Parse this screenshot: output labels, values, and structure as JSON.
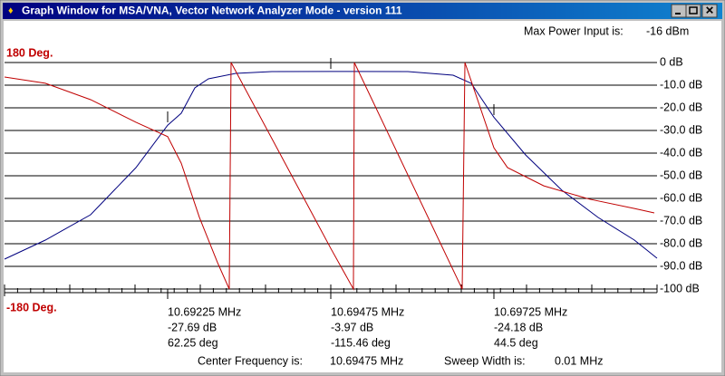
{
  "window": {
    "title": "Graph Window for MSA/VNA, Vector Network Analyzer Mode - version 111"
  },
  "header": {
    "max_power_label": "Max Power Input is:",
    "max_power_value": "-16 dBm"
  },
  "chart_data": {
    "type": "line",
    "xlim": [
      10.68975,
      10.69975
    ],
    "ylim": [
      -100,
      0
    ],
    "yticks": [
      {
        "value": 0,
        "label": "0 dB"
      },
      {
        "value": -10,
        "label": "-10.0 dB"
      },
      {
        "value": -20,
        "label": "-20.0 dB"
      },
      {
        "value": -30,
        "label": "-30.0 dB"
      },
      {
        "value": -40,
        "label": "-40.0 dB"
      },
      {
        "value": -50,
        "label": "-50.0 dB"
      },
      {
        "value": -60,
        "label": "-60.0 dB"
      },
      {
        "value": -70,
        "label": "-70.0 dB"
      },
      {
        "value": -80,
        "label": "-80.0 dB"
      },
      {
        "value": -90,
        "label": "-90.0 dB"
      },
      {
        "value": -100,
        "label": "-100 dB"
      }
    ],
    "y2lim": [
      -180,
      180
    ],
    "y2ticks": [
      {
        "value": 180,
        "label": "180 Deg."
      },
      {
        "value": -180,
        "label": "-180 Deg."
      }
    ],
    "grid": true,
    "series": [
      {
        "color": "#00007f",
        "x": [
          10.68975,
          10.690375,
          10.691069,
          10.691764,
          10.69225,
          10.692458,
          10.692667,
          10.692875,
          10.693292,
          10.693847,
          10.69475,
          10.695931,
          10.696625,
          10.696903,
          10.69725,
          10.697736,
          10.698292,
          10.698847,
          10.699403,
          10.69975
        ],
        "values": [
          -86.8,
          -78.4,
          -67.2,
          -46.4,
          -27.69,
          -22.4,
          -11.2,
          -7.2,
          -4.8,
          -4,
          -3.97,
          -4,
          -5.6,
          -9.2,
          -24.18,
          -40.8,
          -56.4,
          -68.4,
          -78.4,
          -86.4
        ]
      },
      {
        "color": "#c00000",
        "axis": "y2",
        "x": [
          10.68975,
          10.690375,
          10.691069,
          10.691764,
          10.69225,
          10.692458,
          10.692736,
          10.693014,
          10.693194,
          10.693222,
          10.69475,
          10.695097,
          10.695111,
          10.696764,
          10.696806,
          10.69725,
          10.697458,
          10.698014,
          10.698708,
          10.699403,
          10.699708
        ],
        "values": [
          157,
          147,
          121,
          85,
          62.25,
          20,
          -66,
          -138,
          -180,
          180,
          -115.46,
          -180,
          180,
          -180,
          180,
          44.5,
          13,
          -16,
          -37,
          -52,
          -59
        ]
      }
    ]
  },
  "markers": [
    {
      "frequency": "10.69225 MHz",
      "magnitude": "-27.69 dB",
      "phase": "62.25 deg"
    },
    {
      "frequency": "10.69475 MHz",
      "magnitude": "-3.97 dB",
      "phase": "-115.46 deg"
    },
    {
      "frequency": "10.69725 MHz",
      "magnitude": "-24.18 dB",
      "phase": "44.5 deg"
    }
  ],
  "footer": {
    "center_label": "Center Frequency is:",
    "center_value": "10.69475 MHz",
    "width_label": "Sweep Width is:",
    "width_value": "0.01 MHz"
  }
}
